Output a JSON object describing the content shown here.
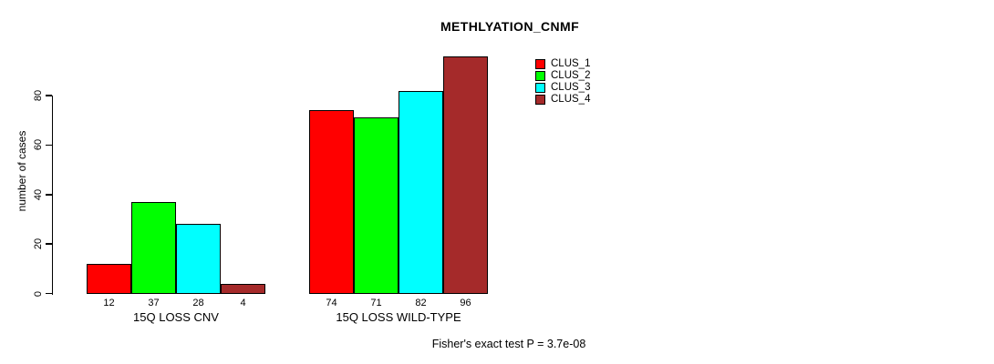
{
  "chart_data": {
    "type": "bar",
    "title": "METHLYATION_CNMF",
    "categories": [
      "15Q LOSS CNV",
      "15Q LOSS WILD-TYPE"
    ],
    "series": [
      {
        "name": "CLUS_1",
        "color": "#FF0000",
        "values": [
          12,
          74
        ]
      },
      {
        "name": "CLUS_2",
        "color": "#00FF00",
        "values": [
          37,
          71
        ]
      },
      {
        "name": "CLUS_3",
        "color": "#00FFFF",
        "values": [
          28,
          82
        ]
      },
      {
        "name": "CLUS_4",
        "color": "#A52A2A",
        "values": [
          4,
          96
        ]
      }
    ],
    "xlabel": "",
    "ylabel": "number of cases",
    "ylim": [
      0,
      97
    ],
    "yticks": [
      0,
      20,
      40,
      60,
      80
    ],
    "grid": false,
    "bar_value_labels_shown": true,
    "legend_position": "top-right",
    "annotation": "Fisher's exact test P = 3.7e-08"
  }
}
